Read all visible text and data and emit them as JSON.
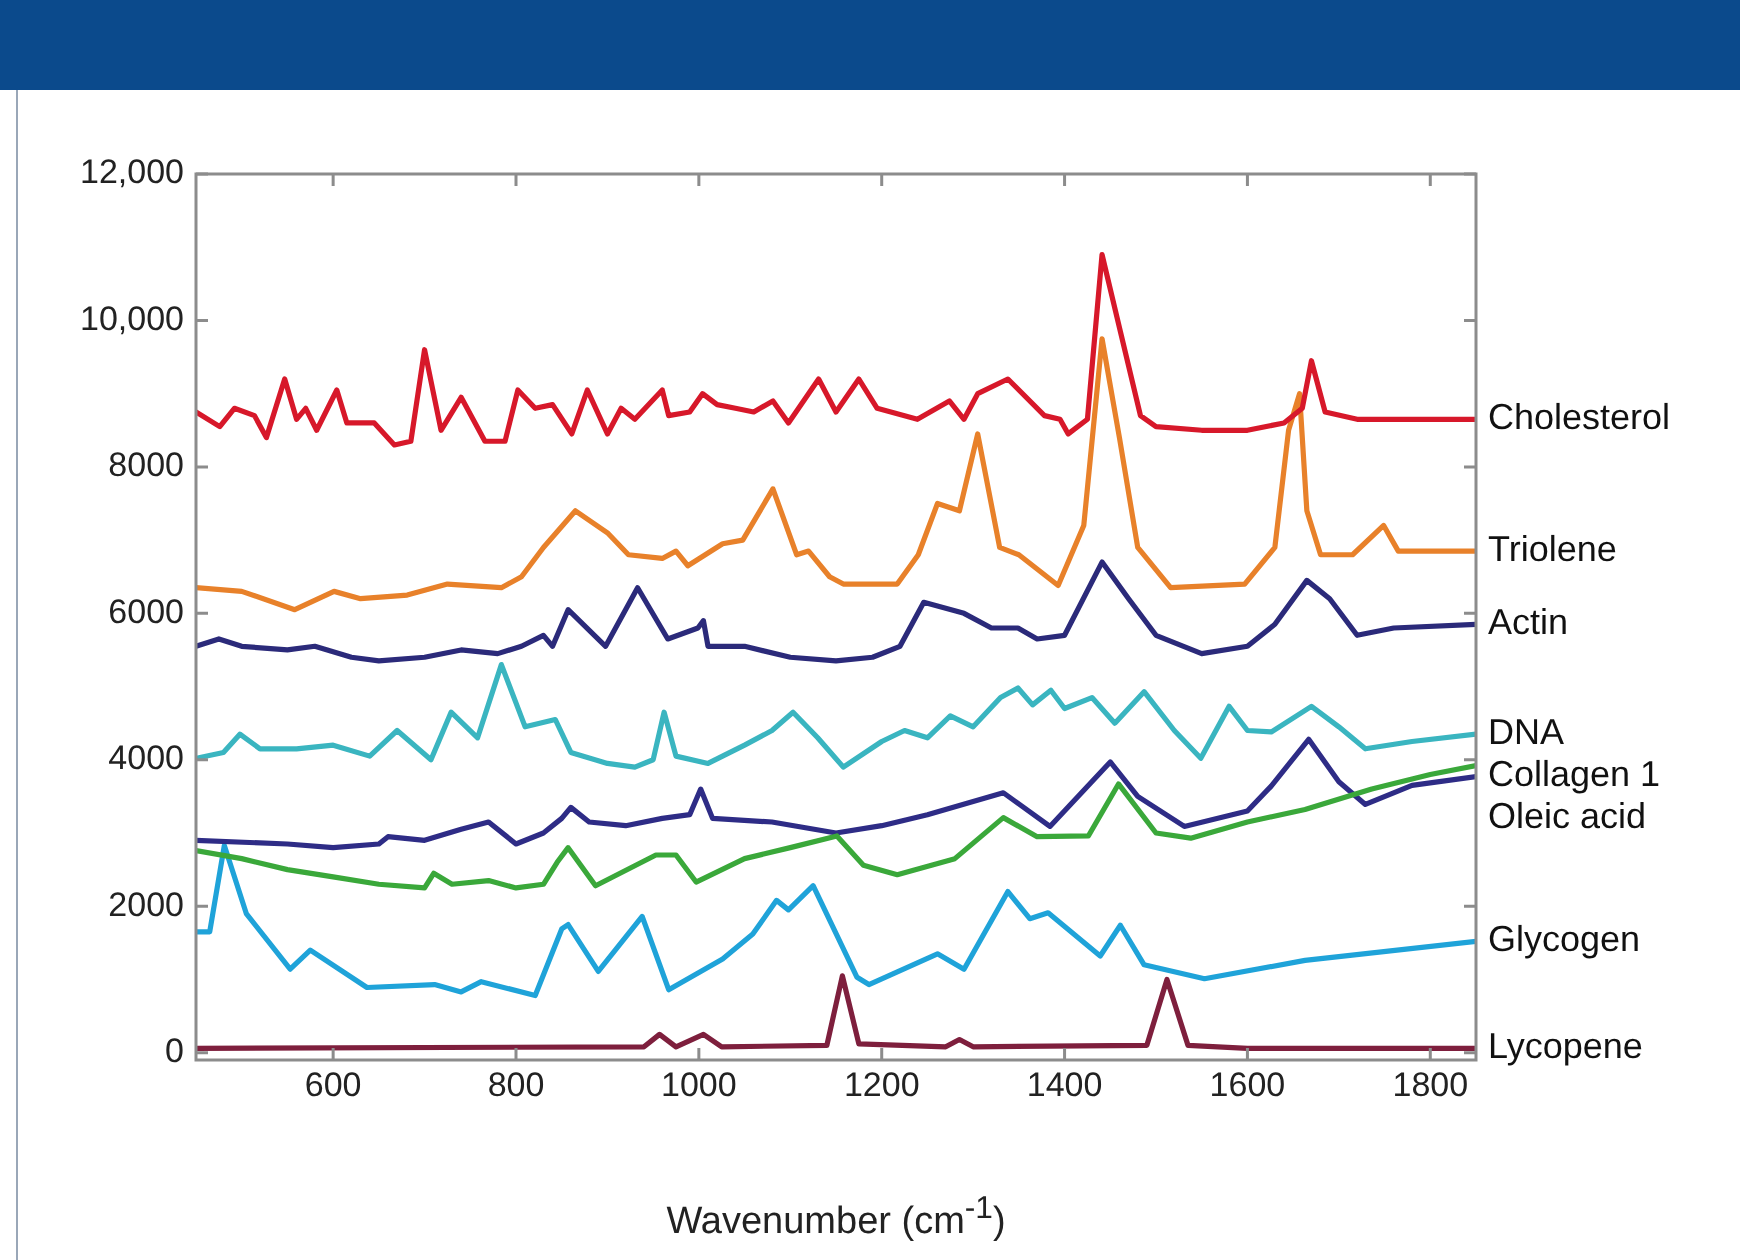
{
  "chart_data": {
    "type": "line",
    "xlabel": "Wavenumber (cm$^{-1}$)",
    "xlim": [
      450,
      1850
    ],
    "xticks": [
      600,
      800,
      1000,
      1200,
      1400,
      1600,
      1800
    ],
    "ylim": [
      -100,
      12000
    ],
    "yticks": [
      0,
      2000,
      4000,
      6000,
      8000,
      {
        "value": 10000,
        "label": "10,000"
      },
      {
        "value": 12000,
        "label": "12,000"
      }
    ],
    "grid": false,
    "marker": "none",
    "line_style": "solid",
    "series": [
      {
        "name": "Cholesterol",
        "color": "#d7182a",
        "x": [
          450,
          476,
          492,
          514,
          527,
          547,
          560,
          570,
          582,
          604,
          615,
          645,
          667,
          685,
          700,
          718,
          740,
          766,
          788,
          802,
          821,
          840,
          861,
          878,
          900,
          915,
          930,
          960,
          967,
          990,
          1004,
          1020,
          1040,
          1060,
          1081,
          1098,
          1131,
          1150,
          1175,
          1195,
          1239,
          1274,
          1290,
          1305,
          1338,
          1378,
          1395,
          1404,
          1425,
          1441,
          1461,
          1483,
          1500,
          1550,
          1600,
          1640,
          1660,
          1670,
          1685,
          1720,
          1780,
          1850
        ],
        "values": [
          8750,
          8550,
          8800,
          8700,
          8400,
          9200,
          8650,
          8800,
          8500,
          9050,
          8600,
          8600,
          8300,
          8350,
          9600,
          8500,
          8950,
          8350,
          8350,
          9050,
          8800,
          8850,
          8450,
          9050,
          8450,
          8800,
          8650,
          9050,
          8700,
          8750,
          9000,
          8850,
          8800,
          8750,
          8900,
          8600,
          9200,
          8750,
          9200,
          8800,
          8650,
          8900,
          8650,
          9000,
          9200,
          8700,
          8650,
          8450,
          8650,
          10900,
          9850,
          8700,
          8550,
          8500,
          8500,
          8600,
          8800,
          9450,
          8750,
          8650,
          8650,
          8650
        ]
      },
      {
        "name": "Triolene",
        "color": "#e8812a",
        "x": [
          450,
          500,
          558,
          601,
          630,
          681,
          725,
          784,
          806,
          830,
          865,
          900,
          923,
          960,
          975,
          988,
          1026,
          1048,
          1081,
          1107,
          1120,
          1143,
          1158,
          1217,
          1240,
          1261,
          1285,
          1305,
          1329,
          1350,
          1393,
          1421,
          1441,
          1460,
          1480,
          1516,
          1597,
          1630,
          1645,
          1657,
          1665,
          1680,
          1715,
          1749,
          1765,
          1850
        ],
        "values": [
          6350,
          6300,
          6050,
          6300,
          6200,
          6250,
          6400,
          6350,
          6500,
          6900,
          7400,
          7100,
          6800,
          6750,
          6850,
          6650,
          6950,
          7000,
          7700,
          6800,
          6850,
          6500,
          6400,
          6400,
          6800,
          7500,
          7400,
          8450,
          6900,
          6800,
          6380,
          7200,
          9750,
          8400,
          6900,
          6350,
          6400,
          6900,
          8500,
          9000,
          7400,
          6800,
          6800,
          7200,
          6850,
          6850
        ]
      },
      {
        "name": "Actin",
        "color": "#2b2a7a",
        "x": [
          450,
          475,
          500,
          550,
          580,
          620,
          650,
          700,
          740,
          780,
          806,
          830,
          840,
          857,
          898,
          933,
          966,
          999,
          1005,
          1010,
          1050,
          1100,
          1150,
          1190,
          1220,
          1246,
          1290,
          1320,
          1349,
          1370,
          1400,
          1441,
          1470,
          1500,
          1550,
          1600,
          1630,
          1665,
          1690,
          1720,
          1760,
          1850
        ],
        "values": [
          5550,
          5650,
          5550,
          5500,
          5550,
          5400,
          5350,
          5400,
          5500,
          5450,
          5550,
          5700,
          5550,
          6050,
          5550,
          6350,
          5650,
          5800,
          5900,
          5550,
          5550,
          5400,
          5350,
          5400,
          5550,
          6150,
          6000,
          5800,
          5800,
          5650,
          5700,
          6700,
          6200,
          5700,
          5450,
          5550,
          5850,
          6450,
          6200,
          5700,
          5800,
          5850
        ]
      },
      {
        "name": "DNA",
        "color": "#3ab5c0",
        "x": [
          450,
          480,
          498,
          520,
          560,
          600,
          640,
          670,
          707,
          729,
          758,
          784,
          810,
          843,
          860,
          900,
          930,
          950,
          962,
          975,
          1010,
          1050,
          1080,
          1103,
          1130,
          1158,
          1200,
          1225,
          1250,
          1275,
          1300,
          1330,
          1349,
          1365,
          1385,
          1400,
          1430,
          1455,
          1487,
          1520,
          1549,
          1580,
          1600,
          1626,
          1670,
          1700,
          1729,
          1780,
          1850
        ],
        "values": [
          4020,
          4100,
          4350,
          4150,
          4150,
          4200,
          4050,
          4400,
          4000,
          4650,
          4300,
          5300,
          4450,
          4550,
          4100,
          3950,
          3900,
          4000,
          4650,
          4050,
          3950,
          4200,
          4400,
          4650,
          4300,
          3900,
          4250,
          4400,
          4300,
          4600,
          4450,
          4850,
          4980,
          4750,
          4950,
          4700,
          4850,
          4500,
          4930,
          4400,
          4020,
          4730,
          4400,
          4380,
          4730,
          4450,
          4150,
          4250,
          4350
        ]
      },
      {
        "name": "Collagen 1",
        "color": "#3aa83a",
        "x": [
          450,
          500,
          550,
          600,
          650,
          700,
          710,
          730,
          770,
          800,
          830,
          845,
          857,
          887,
          953,
          975,
          997,
          1050,
          1100,
          1151,
          1180,
          1217,
          1280,
          1333,
          1370,
          1426,
          1459,
          1500,
          1538,
          1600,
          1663,
          1736,
          1800,
          1850
        ],
        "values": [
          2760,
          2650,
          2500,
          2400,
          2300,
          2250,
          2450,
          2300,
          2350,
          2250,
          2300,
          2600,
          2800,
          2280,
          2700,
          2700,
          2330,
          2650,
          2800,
          2960,
          2560,
          2430,
          2650,
          3210,
          2950,
          2960,
          3670,
          3000,
          2930,
          3150,
          3320,
          3600,
          3800,
          3920
        ]
      },
      {
        "name": "Oleic acid",
        "color": "#2e2c86",
        "x": [
          450,
          550,
          600,
          650,
          660,
          700,
          740,
          770,
          800,
          830,
          850,
          860,
          880,
          920,
          960,
          990,
          1002,
          1015,
          1080,
          1150,
          1200,
          1250,
          1333,
          1384,
          1450,
          1480,
          1531,
          1600,
          1626,
          1667,
          1700,
          1729,
          1780,
          1850
        ],
        "values": [
          2900,
          2850,
          2800,
          2850,
          2950,
          2900,
          3050,
          3150,
          2850,
          3000,
          3200,
          3350,
          3150,
          3100,
          3200,
          3250,
          3600,
          3200,
          3150,
          3000,
          3100,
          3250,
          3550,
          3090,
          3970,
          3500,
          3090,
          3300,
          3640,
          4280,
          3700,
          3390,
          3650,
          3770
        ]
      },
      {
        "name": "Glycogen",
        "color": "#1fa3d9",
        "x": [
          450,
          465,
          481,
          505,
          553,
          575,
          637,
          711,
          740,
          762,
          821,
          850,
          857,
          890,
          938,
          967,
          1026,
          1059,
          1085,
          1098,
          1125,
          1173,
          1186,
          1261,
          1290,
          1338,
          1362,
          1382,
          1439,
          1461,
          1487,
          1553,
          1663,
          1850
        ],
        "values": [
          1650,
          1650,
          2830,
          1900,
          1140,
          1400,
          890,
          930,
          830,
          970,
          780,
          1690,
          1750,
          1110,
          1860,
          860,
          1280,
          1620,
          2080,
          1950,
          2280,
          1030,
          930,
          1350,
          1140,
          2200,
          1830,
          1910,
          1320,
          1740,
          1200,
          1010,
          1260,
          1520
        ]
      },
      {
        "name": "Lycopene",
        "color": "#7e1f3d",
        "x": [
          450,
          940,
          957,
          975,
          1005,
          1025,
          1140,
          1157,
          1175,
          1270,
          1285,
          1300,
          1490,
          1512,
          1535,
          1600,
          1850
        ],
        "values": [
          60,
          80,
          250,
          80,
          250,
          80,
          100,
          1050,
          120,
          80,
          180,
          80,
          100,
          1000,
          100,
          60,
          60
        ]
      }
    ]
  }
}
